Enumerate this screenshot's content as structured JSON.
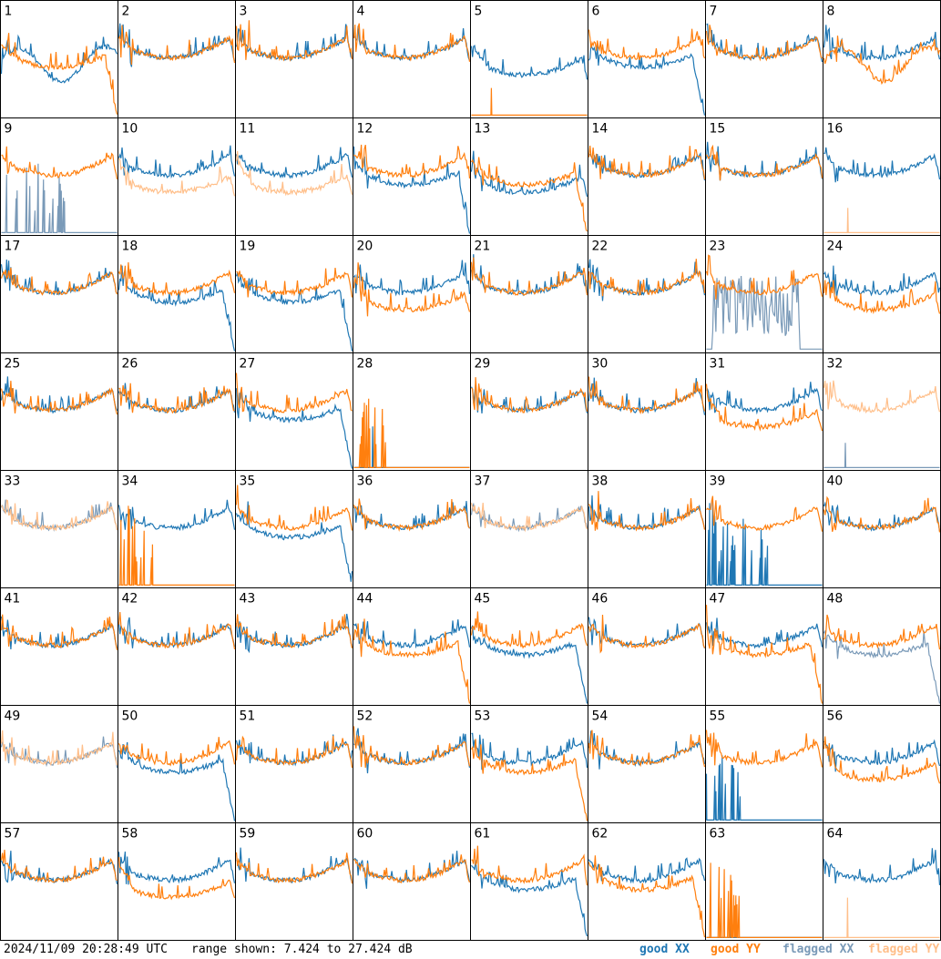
{
  "chart_data": {
    "type": "line",
    "layout": "8x8 small multiples, one panel per antenna",
    "panels": [
      {
        "id": "1",
        "xx": "good",
        "yy": "good",
        "xx_shape": "irregular",
        "yy_shape": "decay_drop"
      },
      {
        "id": "2",
        "xx": "good",
        "yy": "good",
        "xx_shape": "bowl",
        "yy_shape": "bowl"
      },
      {
        "id": "3",
        "xx": "good",
        "yy": "good",
        "xx_shape": "bowl",
        "yy_shape": "bowl"
      },
      {
        "id": "4",
        "xx": "good",
        "yy": "good",
        "xx_shape": "bowl",
        "yy_shape": "bowl"
      },
      {
        "id": "5",
        "xx": "good",
        "yy": "good",
        "xx_shape": "bowl_low",
        "yy_shape": "flat_zero"
      },
      {
        "id": "6",
        "xx": "good",
        "yy": "good",
        "xx_shape": "decay_drop",
        "yy_shape": "bowl"
      },
      {
        "id": "7",
        "xx": "good",
        "yy": "good",
        "xx_shape": "bowl",
        "yy_shape": "bowl"
      },
      {
        "id": "8",
        "xx": "good",
        "yy": "good",
        "xx_shape": "bowl",
        "yy_shape": "irregular"
      },
      {
        "id": "9",
        "xx": "flagged",
        "yy": "good",
        "xx_shape": "spikes_low",
        "yy_shape": "bowl"
      },
      {
        "id": "10",
        "xx": "good",
        "yy": "flagged",
        "xx_shape": "bowl",
        "yy_shape": "bowl_low"
      },
      {
        "id": "11",
        "xx": "good",
        "yy": "flagged",
        "xx_shape": "bowl",
        "yy_shape": "bowl_low"
      },
      {
        "id": "12",
        "xx": "good",
        "yy": "good",
        "xx_shape": "decay_drop",
        "yy_shape": "bowl"
      },
      {
        "id": "13",
        "xx": "good",
        "yy": "good",
        "xx_shape": "bowl_low",
        "yy_shape": "decay_drop"
      },
      {
        "id": "14",
        "xx": "good",
        "yy": "good",
        "xx_shape": "bowl",
        "yy_shape": "bowl"
      },
      {
        "id": "15",
        "xx": "good",
        "yy": "good",
        "xx_shape": "bowl",
        "yy_shape": "bowl"
      },
      {
        "id": "16",
        "xx": "good",
        "yy": "flagged",
        "xx_shape": "bowl",
        "yy_shape": "flat_zero"
      },
      {
        "id": "17",
        "xx": "good",
        "yy": "good",
        "xx_shape": "bowl",
        "yy_shape": "bowl"
      },
      {
        "id": "18",
        "xx": "good",
        "yy": "good",
        "xx_shape": "decay_drop",
        "yy_shape": "bowl"
      },
      {
        "id": "19",
        "xx": "good",
        "yy": "good",
        "xx_shape": "decay_drop",
        "yy_shape": "bowl"
      },
      {
        "id": "20",
        "xx": "good",
        "yy": "good",
        "xx_shape": "bowl",
        "yy_shape": "bowl_low"
      },
      {
        "id": "21",
        "xx": "good",
        "yy": "good",
        "xx_shape": "bowl",
        "yy_shape": "bowl"
      },
      {
        "id": "22",
        "xx": "good",
        "yy": "good",
        "xx_shape": "bowl",
        "yy_shape": "bowl"
      },
      {
        "id": "23",
        "xx": "flagged",
        "yy": "good",
        "xx_shape": "noise_mid",
        "yy_shape": "bowl"
      },
      {
        "id": "24",
        "xx": "good",
        "yy": "good",
        "xx_shape": "bowl",
        "yy_shape": "bowl_low"
      },
      {
        "id": "25",
        "xx": "good",
        "yy": "good",
        "xx_shape": "bowl",
        "yy_shape": "bowl"
      },
      {
        "id": "26",
        "xx": "good",
        "yy": "good",
        "xx_shape": "bowl",
        "yy_shape": "bowl"
      },
      {
        "id": "27",
        "xx": "good",
        "yy": "good",
        "xx_shape": "decay_drop",
        "yy_shape": "bowl"
      },
      {
        "id": "28",
        "xx": "good",
        "yy": "good",
        "xx_shape": "flat_zero",
        "yy_shape": "spikes_left"
      },
      {
        "id": "29",
        "xx": "good",
        "yy": "good",
        "xx_shape": "bowl",
        "yy_shape": "bowl"
      },
      {
        "id": "30",
        "xx": "good",
        "yy": "good",
        "xx_shape": "bowl",
        "yy_shape": "bowl"
      },
      {
        "id": "31",
        "xx": "good",
        "yy": "good",
        "xx_shape": "bowl",
        "yy_shape": "bowl_low"
      },
      {
        "id": "32",
        "xx": "flagged",
        "yy": "flagged",
        "xx_shape": "flat_zero",
        "yy_shape": "bowl"
      },
      {
        "id": "33",
        "xx": "flagged",
        "yy": "flagged",
        "xx_shape": "bowl",
        "yy_shape": "bowl"
      },
      {
        "id": "34",
        "xx": "good",
        "yy": "good",
        "xx_shape": "bowl",
        "yy_shape": "spikes_left"
      },
      {
        "id": "35",
        "xx": "good",
        "yy": "good",
        "xx_shape": "decay_drop",
        "yy_shape": "bowl"
      },
      {
        "id": "36",
        "xx": "good",
        "yy": "good",
        "xx_shape": "bowl",
        "yy_shape": "bowl"
      },
      {
        "id": "37",
        "xx": "flagged",
        "yy": "flagged",
        "xx_shape": "bowl",
        "yy_shape": "bowl"
      },
      {
        "id": "38",
        "xx": "good",
        "yy": "good",
        "xx_shape": "bowl",
        "yy_shape": "bowl"
      },
      {
        "id": "39",
        "xx": "good",
        "yy": "good",
        "xx_shape": "spikes_low",
        "yy_shape": "bowl"
      },
      {
        "id": "40",
        "xx": "good",
        "yy": "good",
        "xx_shape": "bowl",
        "yy_shape": "bowl"
      },
      {
        "id": "41",
        "xx": "good",
        "yy": "good",
        "xx_shape": "bowl",
        "yy_shape": "bowl"
      },
      {
        "id": "42",
        "xx": "good",
        "yy": "good",
        "xx_shape": "bowl",
        "yy_shape": "bowl"
      },
      {
        "id": "43",
        "xx": "good",
        "yy": "good",
        "xx_shape": "bowl",
        "yy_shape": "bowl"
      },
      {
        "id": "44",
        "xx": "good",
        "yy": "good",
        "xx_shape": "bowl",
        "yy_shape": "decay_drop"
      },
      {
        "id": "45",
        "xx": "good",
        "yy": "good",
        "xx_shape": "decay_drop",
        "yy_shape": "bowl"
      },
      {
        "id": "46",
        "xx": "good",
        "yy": "good",
        "xx_shape": "bowl",
        "yy_shape": "bowl"
      },
      {
        "id": "47",
        "xx": "good",
        "yy": "good",
        "xx_shape": "bowl",
        "yy_shape": "decay_drop"
      },
      {
        "id": "48",
        "xx": "flagged",
        "yy": "good",
        "xx_shape": "decay_drop",
        "yy_shape": "bowl"
      },
      {
        "id": "49",
        "xx": "flagged",
        "yy": "flagged",
        "xx_shape": "bowl",
        "yy_shape": "bowl"
      },
      {
        "id": "50",
        "xx": "good",
        "yy": "good",
        "xx_shape": "decay_drop",
        "yy_shape": "bowl"
      },
      {
        "id": "51",
        "xx": "good",
        "yy": "good",
        "xx_shape": "bowl",
        "yy_shape": "bowl"
      },
      {
        "id": "52",
        "xx": "good",
        "yy": "good",
        "xx_shape": "bowl",
        "yy_shape": "bowl"
      },
      {
        "id": "53",
        "xx": "good",
        "yy": "good",
        "xx_shape": "bowl",
        "yy_shape": "decay_drop"
      },
      {
        "id": "54",
        "xx": "good",
        "yy": "good",
        "xx_shape": "bowl",
        "yy_shape": "bowl"
      },
      {
        "id": "55",
        "xx": "good",
        "yy": "good",
        "xx_shape": "spikes_left",
        "yy_shape": "bowl"
      },
      {
        "id": "56",
        "xx": "good",
        "yy": "good",
        "xx_shape": "bowl",
        "yy_shape": "bowl_low"
      },
      {
        "id": "57",
        "xx": "good",
        "yy": "good",
        "xx_shape": "bowl",
        "yy_shape": "bowl"
      },
      {
        "id": "58",
        "xx": "good",
        "yy": "good",
        "xx_shape": "bowl",
        "yy_shape": "bowl_low"
      },
      {
        "id": "59",
        "xx": "good",
        "yy": "good",
        "xx_shape": "bowl",
        "yy_shape": "bowl"
      },
      {
        "id": "60",
        "xx": "good",
        "yy": "good",
        "xx_shape": "bowl",
        "yy_shape": "bowl"
      },
      {
        "id": "61",
        "xx": "good",
        "yy": "good",
        "xx_shape": "decay_drop",
        "yy_shape": "bowl"
      },
      {
        "id": "62",
        "xx": "good",
        "yy": "good",
        "xx_shape": "bowl",
        "yy_shape": "decay_drop"
      },
      {
        "id": "63",
        "xx": "good",
        "yy": "good",
        "xx_shape": "flat_zero",
        "yy_shape": "spikes_left"
      },
      {
        "id": "64",
        "xx": "good",
        "yy": "flagged",
        "xx_shape": "bowl",
        "yy_shape": "flat_zero"
      }
    ],
    "range_db": [
      7.424,
      27.424
    ],
    "colors": {
      "good_xx": "#1f77b4",
      "good_yy": "#ff7f0e",
      "flagged_xx": "#7a9ab8",
      "flagged_yy": "#ffbf8a"
    }
  },
  "footer": {
    "timestamp": "2024/11/09 20:28:49 UTC",
    "range_text": "range shown: 7.424 to 27.424 dB",
    "legend": {
      "good_xx": "good XX",
      "good_yy": "good YY",
      "flagged_xx": "flagged XX",
      "flagged_yy": "flagged YY"
    }
  }
}
